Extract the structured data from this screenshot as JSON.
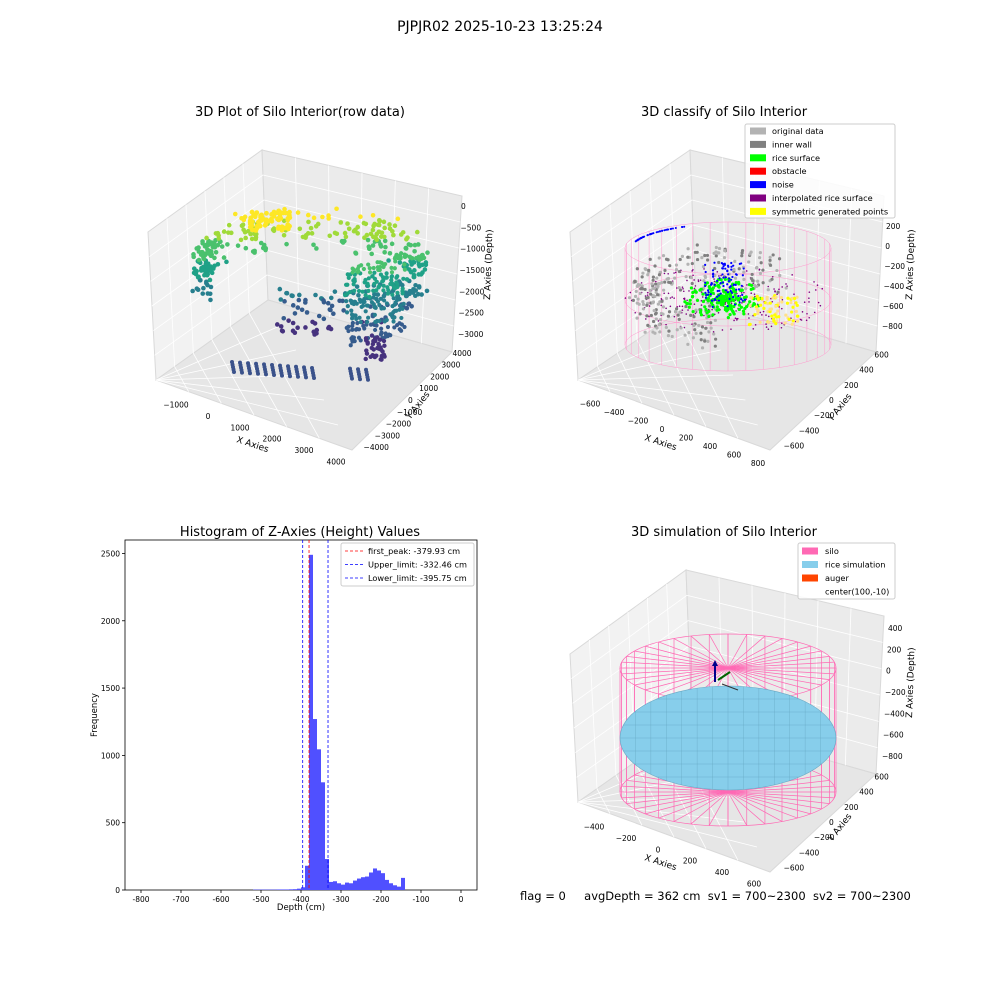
{
  "suptitle": "PJPJR02 2025-10-23 13:25:24",
  "status": {
    "flag": "flag = 0",
    "avg_depth": "avgDepth = 362 cm",
    "sv1": "sv1 = 700~2300",
    "sv2": "sv2 = 700~2300"
  },
  "colors": {
    "histogram_bar": "#5050ff",
    "first_peak_line": "#ff0000",
    "limit_lines": "#0000ff",
    "silo": "#ff69b4",
    "rice_simulation": "#87ceeb",
    "auger": "#ff4500"
  },
  "chart_data": [
    {
      "type": "scatter3d",
      "title": "3D Plot of Silo Interior(row data)",
      "xlabel": "X Axies",
      "ylabel": "Y Axies",
      "zlabel": "Z Axies (Depth)",
      "x_ticks": [
        "−1000",
        "0",
        "1000",
        "2000",
        "3000",
        "4000"
      ],
      "y_ticks": [
        "−4000",
        "−3000",
        "−2000",
        "−1000",
        "0",
        "1000",
        "2000",
        "3000",
        "4000"
      ],
      "z_ticks": [
        "0",
        "−500",
        "−1000",
        "−1500",
        "−2000",
        "−2500",
        "−3000"
      ],
      "colormap": "viridis"
    },
    {
      "type": "scatter3d",
      "title": "3D classify of Silo Interior",
      "xlabel": "X Axies",
      "ylabel": "Y Axies",
      "zlabel": "Z Axies (Depth)",
      "x_ticks": [
        "−600",
        "−400",
        "−200",
        "0",
        "200",
        "400",
        "600",
        "800"
      ],
      "y_ticks": [
        "−600",
        "−400",
        "−200",
        "0",
        "200",
        "400",
        "600"
      ],
      "z_ticks": [
        "200",
        "0",
        "−200",
        "−400",
        "−600",
        "−800"
      ],
      "legend_position": "top-right",
      "legend": [
        {
          "label": "original data",
          "color": "#b3b3b3"
        },
        {
          "label": "inner wall",
          "color": "#808080"
        },
        {
          "label": "rice surface",
          "color": "#00ff00"
        },
        {
          "label": "obstacle",
          "color": "#ff0000"
        },
        {
          "label": "noise",
          "color": "#0000ff"
        },
        {
          "label": "interpolated rice surface",
          "color": "#800080"
        },
        {
          "label": "symmetric generated points",
          "color": "#ffff00"
        }
      ]
    },
    {
      "type": "bar",
      "title": "Histogram of Z-Axies (Height) Values",
      "xlabel": "Depth (cm)",
      "ylabel": "Frequency",
      "xlim": [
        -840,
        40
      ],
      "ylim": [
        0,
        2600
      ],
      "x_ticks": [
        -800,
        -700,
        -600,
        -500,
        -400,
        -300,
        -200,
        -100,
        0
      ],
      "y_ticks": [
        0,
        500,
        1000,
        1500,
        2000,
        2500
      ],
      "bin_width": 10,
      "bins": [
        {
          "x": -520,
          "y": 3
        },
        {
          "x": -510,
          "y": 3
        },
        {
          "x": -500,
          "y": 3
        },
        {
          "x": -490,
          "y": 3
        },
        {
          "x": -480,
          "y": 3
        },
        {
          "x": -470,
          "y": 3
        },
        {
          "x": -460,
          "y": 4
        },
        {
          "x": -450,
          "y": 4
        },
        {
          "x": -440,
          "y": 4
        },
        {
          "x": -430,
          "y": 5
        },
        {
          "x": -420,
          "y": 6
        },
        {
          "x": -410,
          "y": 10
        },
        {
          "x": -400,
          "y": 20
        },
        {
          "x": -390,
          "y": 180
        },
        {
          "x": -380,
          "y": 2490
        },
        {
          "x": -370,
          "y": 1270
        },
        {
          "x": -360,
          "y": 1045
        },
        {
          "x": -350,
          "y": 800
        },
        {
          "x": -340,
          "y": 230
        },
        {
          "x": -330,
          "y": 60
        },
        {
          "x": -320,
          "y": 65
        },
        {
          "x": -310,
          "y": 50
        },
        {
          "x": -300,
          "y": 40
        },
        {
          "x": -290,
          "y": 55
        },
        {
          "x": -280,
          "y": 50
        },
        {
          "x": -270,
          "y": 70
        },
        {
          "x": -260,
          "y": 85
        },
        {
          "x": -250,
          "y": 95
        },
        {
          "x": -240,
          "y": 100
        },
        {
          "x": -230,
          "y": 130
        },
        {
          "x": -220,
          "y": 160
        },
        {
          "x": -210,
          "y": 145
        },
        {
          "x": -200,
          "y": 125
        },
        {
          "x": -190,
          "y": 75
        },
        {
          "x": -180,
          "y": 50
        },
        {
          "x": -170,
          "y": 35
        },
        {
          "x": -160,
          "y": 25
        },
        {
          "x": -150,
          "y": 90
        }
      ],
      "vlines": [
        {
          "x": -379.93,
          "label": "first_peak: -379.93 cm",
          "style": "red"
        },
        {
          "x": -332.46,
          "label": "Upper_limit: -332.46 cm",
          "style": "blue"
        },
        {
          "x": -395.75,
          "label": "Lower_limit: -395.75 cm",
          "style": "blue"
        }
      ],
      "legend_position": "top-right"
    },
    {
      "type": "surface3d",
      "title": "3D simulation of Silo Interior",
      "xlabel": "X Axies",
      "ylabel": "Y Axies",
      "zlabel": "Z Axies (Depth)",
      "x_ticks": [
        "−400",
        "−200",
        "0",
        "200",
        "400",
        "600"
      ],
      "y_ticks": [
        "−600",
        "−400",
        "−200",
        "0",
        "200",
        "400",
        "600"
      ],
      "z_ticks": [
        "400",
        "200",
        "0",
        "−200",
        "−400",
        "−600",
        "−800"
      ],
      "legend_position": "top-right",
      "legend": [
        {
          "label": "silo",
          "color": "#ff69b4"
        },
        {
          "label": "rice simulation",
          "color": "#87ceeb"
        },
        {
          "label": "auger",
          "color": "#ff4500"
        },
        {
          "label": "center(100,-10)",
          "color": ""
        }
      ]
    }
  ]
}
